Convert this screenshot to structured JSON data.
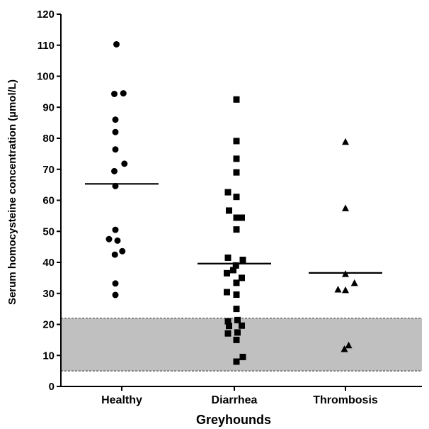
{
  "chart_data": {
    "type": "scatter",
    "xlabel": "Greyhounds",
    "ylabel": "Serum homocysteine concentration (µmol/L)",
    "ylim": [
      0,
      120
    ],
    "yticks": [
      0,
      10,
      20,
      30,
      40,
      50,
      60,
      70,
      80,
      90,
      100,
      110,
      120
    ],
    "categories": [
      "Healthy",
      "Diarrhea",
      "Thrombosis"
    ],
    "reference_range": {
      "low": 5,
      "high": 22,
      "color": "#c0c0c0"
    },
    "series": [
      {
        "category": "Healthy",
        "marker": "circle",
        "mean": 65.3,
        "points": [
          {
            "x": -0.1,
            "y": 110.3
          },
          {
            "x": -0.14,
            "y": 94.3
          },
          {
            "x": 0.03,
            "y": 94.5
          },
          {
            "x": -0.12,
            "y": 86.0
          },
          {
            "x": -0.12,
            "y": 82.0
          },
          {
            "x": -0.12,
            "y": 76.4
          },
          {
            "x": 0.05,
            "y": 71.8
          },
          {
            "x": -0.14,
            "y": 69.4
          },
          {
            "x": -0.12,
            "y": 64.6
          },
          {
            "x": -0.12,
            "y": 50.5
          },
          {
            "x": -0.24,
            "y": 47.5
          },
          {
            "x": -0.08,
            "y": 47.0
          },
          {
            "x": 0.01,
            "y": 43.6
          },
          {
            "x": -0.13,
            "y": 42.5
          },
          {
            "x": -0.12,
            "y": 33.2
          },
          {
            "x": -0.12,
            "y": 29.5
          }
        ]
      },
      {
        "category": "Diarrhea",
        "marker": "square",
        "mean": 39.6,
        "points": [
          {
            "x": 0.04,
            "y": 92.5
          },
          {
            "x": 0.04,
            "y": 79.1
          },
          {
            "x": 0.04,
            "y": 73.4
          },
          {
            "x": 0.04,
            "y": 69.0
          },
          {
            "x": -0.12,
            "y": 62.6
          },
          {
            "x": 0.04,
            "y": 61.1
          },
          {
            "x": -0.1,
            "y": 56.7
          },
          {
            "x": 0.04,
            "y": 54.4
          },
          {
            "x": 0.14,
            "y": 54.4
          },
          {
            "x": 0.04,
            "y": 50.6
          },
          {
            "x": -0.12,
            "y": 41.5
          },
          {
            "x": 0.16,
            "y": 40.8
          },
          {
            "x": 0.03,
            "y": 39.0
          },
          {
            "x": -0.02,
            "y": 37.5
          },
          {
            "x": -0.14,
            "y": 36.5
          },
          {
            "x": 0.14,
            "y": 35.0
          },
          {
            "x": 0.04,
            "y": 33.4
          },
          {
            "x": -0.14,
            "y": 30.4
          },
          {
            "x": 0.04,
            "y": 29.6
          },
          {
            "x": 0.04,
            "y": 25.0
          },
          {
            "x": -0.12,
            "y": 21.0
          },
          {
            "x": 0.06,
            "y": 21.4
          },
          {
            "x": -0.1,
            "y": 19.5
          },
          {
            "x": 0.14,
            "y": 19.6
          },
          {
            "x": -0.12,
            "y": 17.1
          },
          {
            "x": 0.06,
            "y": 17.4
          },
          {
            "x": 0.04,
            "y": 15.0
          },
          {
            "x": 0.16,
            "y": 9.5
          },
          {
            "x": 0.04,
            "y": 8.0
          }
        ]
      },
      {
        "category": "Thrombosis",
        "marker": "triangle",
        "mean": 36.6,
        "points": [
          {
            "x": 0.0,
            "y": 78.8
          },
          {
            "x": 0.0,
            "y": 57.4
          },
          {
            "x": 0.0,
            "y": 36.2
          },
          {
            "x": 0.17,
            "y": 33.3
          },
          {
            "x": -0.14,
            "y": 31.2
          },
          {
            "x": 0.0,
            "y": 31.0
          },
          {
            "x": 0.06,
            "y": 13.2
          },
          {
            "x": -0.02,
            "y": 12.0
          }
        ]
      }
    ]
  }
}
